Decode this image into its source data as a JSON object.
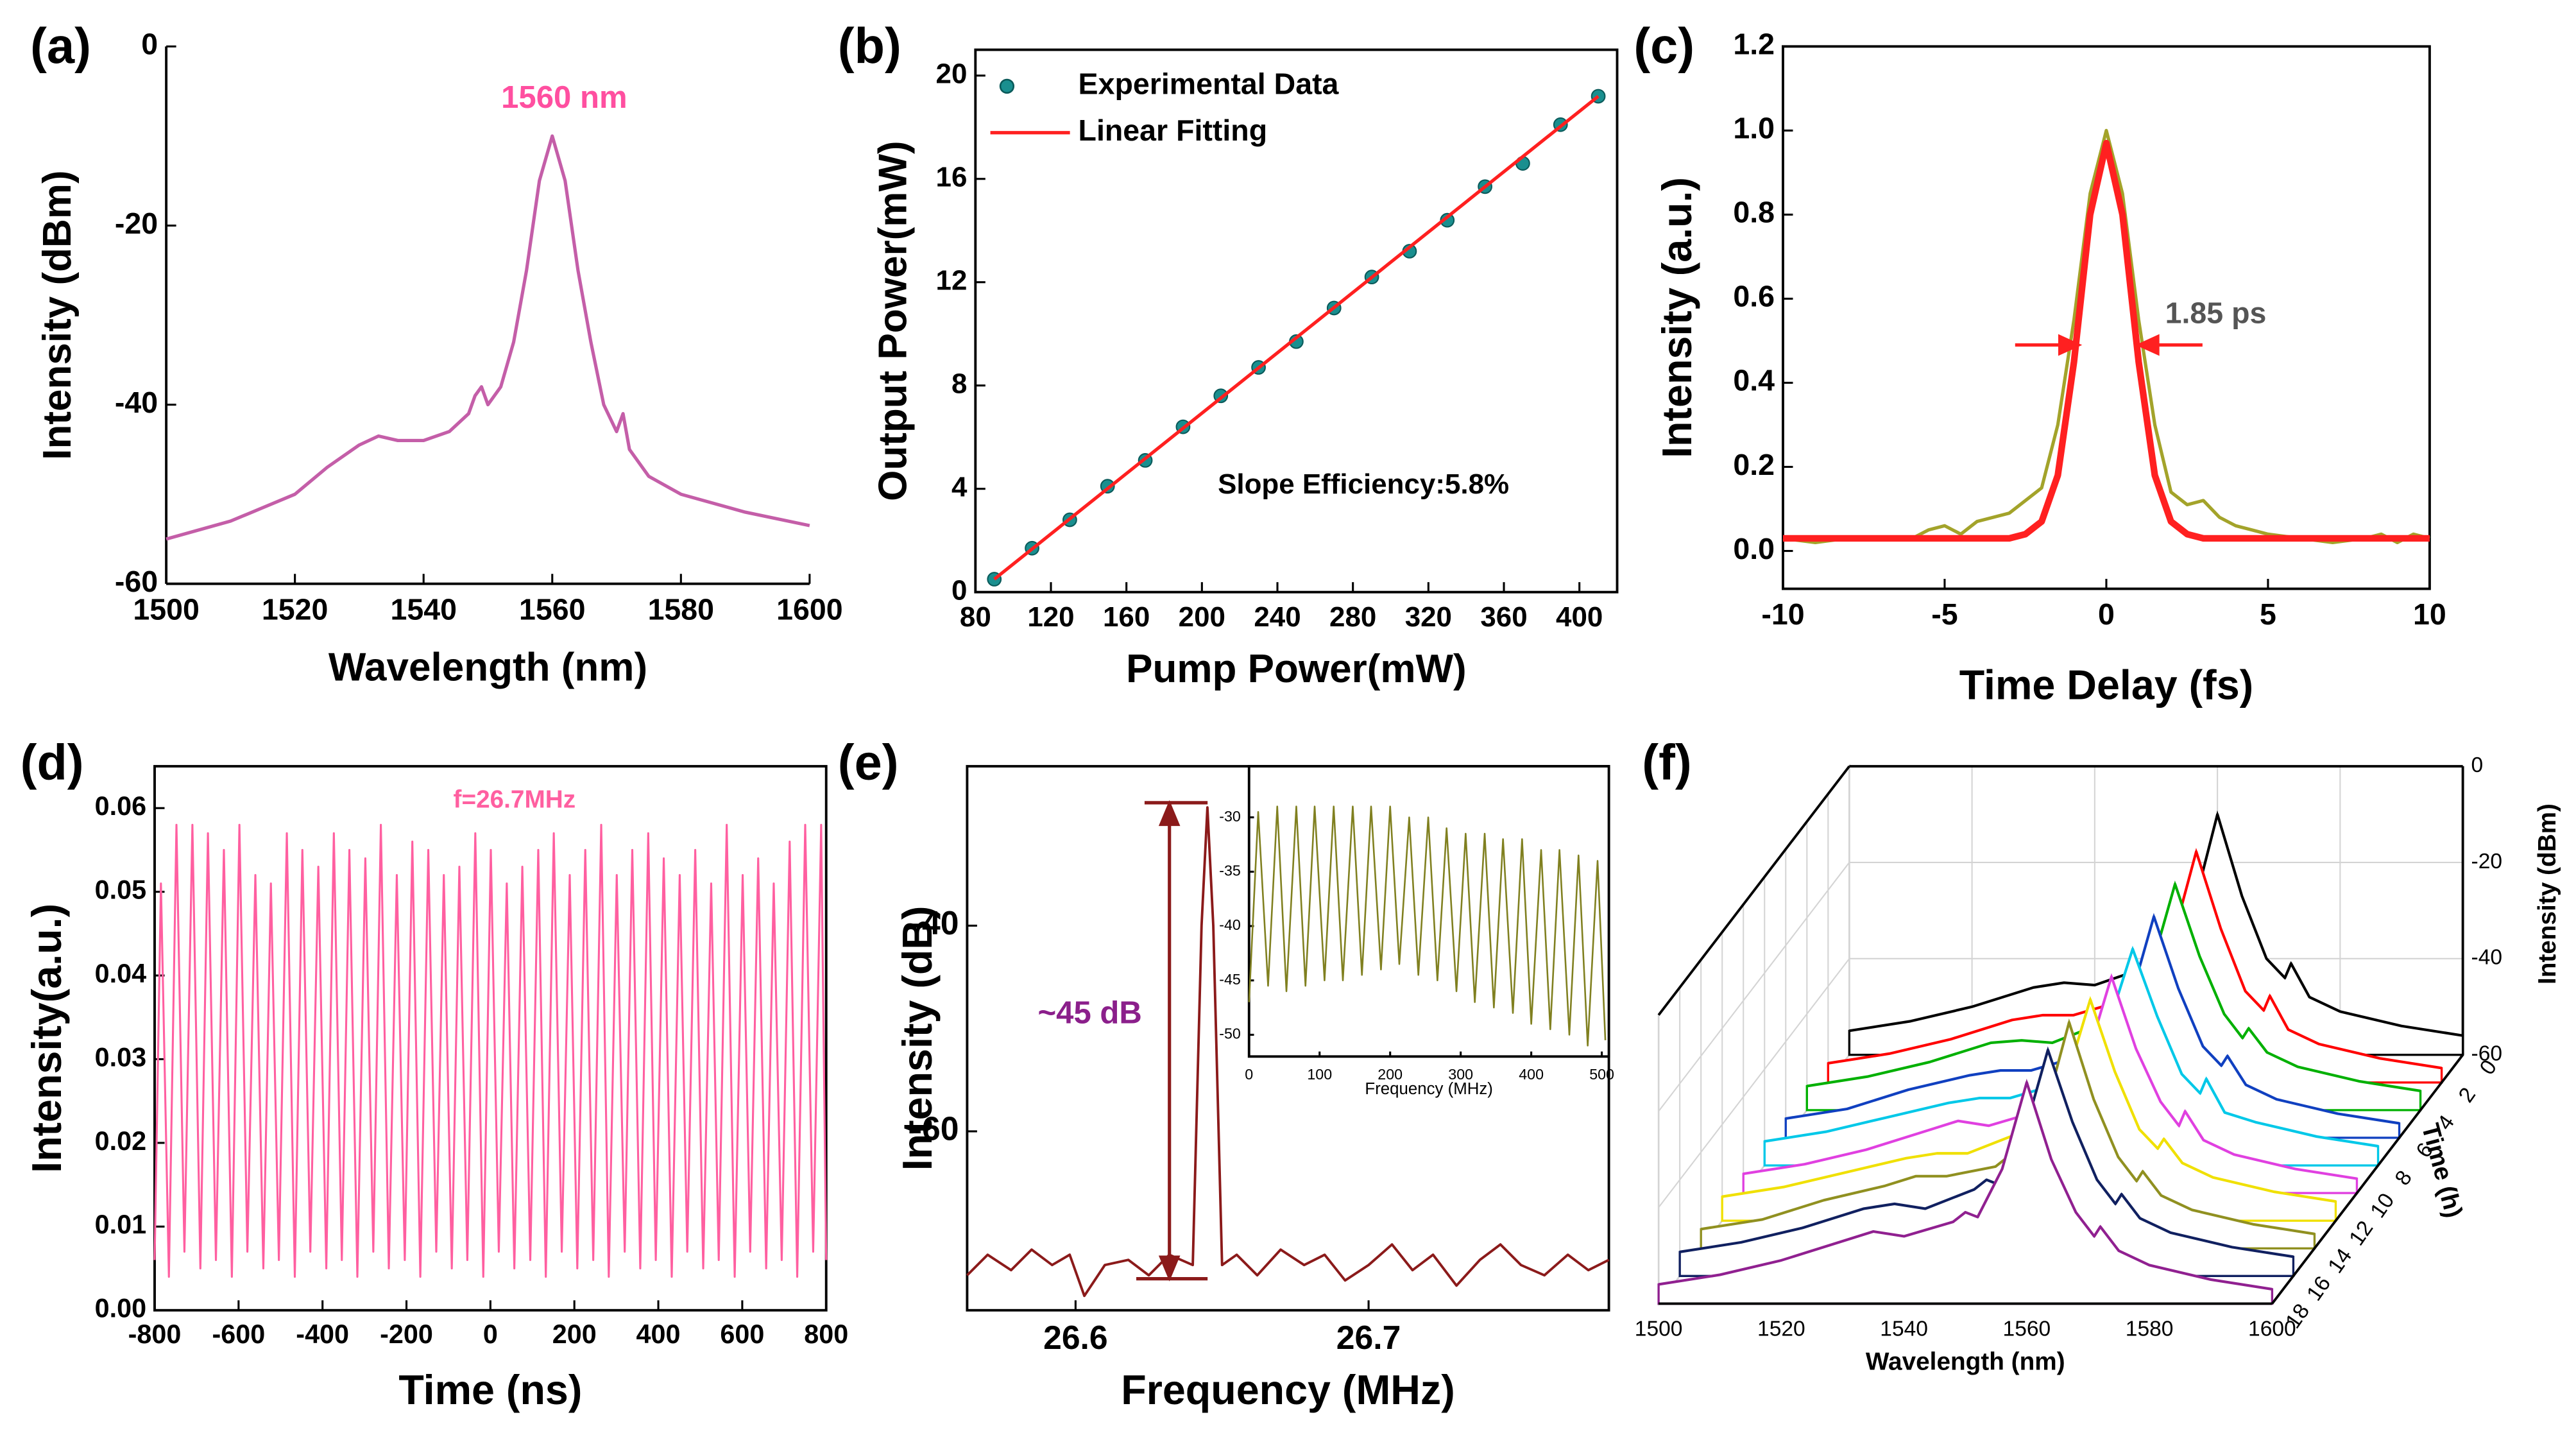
{
  "chart_data": [
    {
      "type": "line",
      "label": "(a)",
      "xlabel": "Wavelength (nm)",
      "ylabel": "Intensity (dBm)",
      "annotation": "1560 nm",
      "xlim": [
        1500,
        1600
      ],
      "ylim": [
        -60,
        0
      ],
      "xticks": [
        1500,
        1520,
        1540,
        1560,
        1580,
        1600
      ],
      "yticks": [
        0,
        -20,
        -40,
        -60
      ],
      "series": [
        {
          "color": "#c45ea8",
          "x": [
            1500,
            1505,
            1510,
            1515,
            1520,
            1525,
            1530,
            1533,
            1536,
            1540,
            1544,
            1547,
            1548,
            1549,
            1550,
            1552,
            1554,
            1556,
            1558,
            1560,
            1562,
            1564,
            1566,
            1568,
            1570,
            1571,
            1572,
            1575,
            1580,
            1590,
            1600
          ],
          "values": [
            -55,
            -54,
            -53,
            -51.5,
            -50,
            -47,
            -44.5,
            -43.5,
            -44,
            -44,
            -43,
            -41,
            -39,
            -38,
            -40,
            -38,
            -33,
            -25,
            -15,
            -10,
            -15,
            -25,
            -33,
            -40,
            -43,
            -41,
            -45,
            -48,
            -50,
            -52,
            -53.5
          ]
        }
      ]
    },
    {
      "type": "scatter",
      "label": "(b)",
      "xlabel": "Pump Power(mW)",
      "ylabel": "Output Power(mW)",
      "annotation": "Slope Efficiency:5.8%",
      "xlim": [
        80,
        420
      ],
      "ylim": [
        0,
        21
      ],
      "xticks": [
        80,
        120,
        160,
        200,
        240,
        280,
        320,
        360,
        400
      ],
      "yticks": [
        0,
        4,
        8,
        12,
        16,
        20
      ],
      "legend": "upper left",
      "series": [
        {
          "name": "Experimental Data",
          "color": "#1a8f8f",
          "x": [
            90,
            110,
            130,
            150,
            170,
            190,
            210,
            230,
            250,
            270,
            290,
            310,
            330,
            350,
            370,
            390,
            410
          ],
          "values": [
            0.5,
            1.7,
            2.8,
            4.1,
            5.1,
            6.4,
            7.6,
            8.7,
            9.7,
            11.0,
            12.2,
            13.2,
            14.4,
            15.7,
            16.6,
            18.1,
            19.2
          ]
        },
        {
          "name": "Linear Fitting",
          "type": "line",
          "color": "#ff2020",
          "x": [
            90,
            410
          ],
          "values": [
            0.5,
            19.2
          ]
        }
      ]
    },
    {
      "type": "line",
      "label": "(c)",
      "xlabel": "Time Delay (fs)",
      "ylabel": "Intensity (a.u.)",
      "annotation": "1.85 ps",
      "xlim": [
        -10,
        10
      ],
      "ylim": [
        -0.09,
        1.2
      ],
      "xticks": [
        -10,
        -5,
        0,
        5,
        10
      ],
      "yticks": [
        {
          "value": 0,
          "label": "0.0"
        },
        0.2,
        0.4,
        0.6,
        0.8,
        {
          "value": 1,
          "label": "1.0"
        },
        1.2
      ],
      "series": [
        {
          "color": "#a3a32a",
          "x": [
            -10,
            -9,
            -8,
            -7,
            -6,
            -5.5,
            -5,
            -4.5,
            -4,
            -3,
            -2.5,
            -2,
            -1.5,
            -1,
            -0.5,
            0,
            0.5,
            1,
            1.5,
            2,
            2.5,
            3,
            3.5,
            4,
            4.5,
            5,
            6,
            7,
            8,
            8.5,
            9,
            9.5,
            10
          ],
          "values": [
            0.03,
            0.02,
            0.03,
            0.03,
            0.03,
            0.05,
            0.06,
            0.04,
            0.07,
            0.09,
            0.12,
            0.15,
            0.3,
            0.55,
            0.85,
            1.0,
            0.85,
            0.55,
            0.3,
            0.14,
            0.11,
            0.12,
            0.08,
            0.06,
            0.05,
            0.04,
            0.03,
            0.02,
            0.03,
            0.04,
            0.02,
            0.04,
            0.03
          ]
        },
        {
          "color": "#ff2020",
          "x": [
            -10,
            -3,
            -2.5,
            -2,
            -1.5,
            -1,
            -0.5,
            0,
            0.5,
            1,
            1.5,
            2,
            2.5,
            3,
            10
          ],
          "values": [
            0.03,
            0.03,
            0.04,
            0.07,
            0.18,
            0.45,
            0.8,
            0.97,
            0.8,
            0.45,
            0.18,
            0.07,
            0.04,
            0.03,
            0.03
          ]
        }
      ]
    },
    {
      "type": "line",
      "label": "(d)",
      "xlabel": "Time (ns)",
      "ylabel": "Intensity(a.u.)",
      "annotation": "f=26.7MHz",
      "xlim": [
        -800,
        800
      ],
      "ylim": [
        0,
        0.065
      ],
      "xticks": [
        -800,
        -600,
        -400,
        -200,
        0,
        200,
        400,
        600,
        800
      ],
      "yticks": [
        {
          "value": 0,
          "label": "0.00"
        },
        0.01,
        0.02,
        0.03,
        0.04,
        0.05,
        0.06
      ],
      "series": [
        {
          "color": "#ff5fa0",
          "x": [
            -800,
            -785,
            -766,
            -748,
            -729,
            -710,
            -691,
            -673,
            -654,
            -635,
            -616,
            -598,
            -579,
            -560,
            -541,
            -523,
            -504,
            -485,
            -466,
            -448,
            -429,
            -410,
            -391,
            -373,
            -354,
            -336,
            -317,
            -298,
            -279,
            -261,
            -242,
            -223,
            -204,
            -186,
            -167,
            -148,
            -129,
            -111,
            -92,
            -74,
            -55,
            -36,
            -17,
            1,
            20,
            39,
            57,
            76,
            95,
            114,
            132,
            151,
            170,
            189,
            207,
            226,
            245,
            264,
            282,
            301,
            320,
            338,
            357,
            376,
            394,
            413,
            432,
            451,
            469,
            488,
            507,
            526,
            544,
            563,
            582,
            601,
            619,
            638,
            657,
            675,
            694,
            713,
            731,
            750,
            769,
            788,
            800
          ],
          "values": [
            0.006,
            0.051,
            0.004,
            0.058,
            0.007,
            0.058,
            0.005,
            0.057,
            0.006,
            0.055,
            0.004,
            0.058,
            0.007,
            0.052,
            0.005,
            0.051,
            0.006,
            0.057,
            0.004,
            0.055,
            0.007,
            0.053,
            0.005,
            0.057,
            0.006,
            0.055,
            0.004,
            0.054,
            0.007,
            0.058,
            0.005,
            0.052,
            0.006,
            0.056,
            0.004,
            0.055,
            0.007,
            0.052,
            0.005,
            0.053,
            0.006,
            0.057,
            0.004,
            0.055,
            0.007,
            0.051,
            0.005,
            0.053,
            0.006,
            0.055,
            0.004,
            0.057,
            0.007,
            0.052,
            0.005,
            0.055,
            0.006,
            0.058,
            0.004,
            0.052,
            0.007,
            0.055,
            0.005,
            0.057,
            0.006,
            0.054,
            0.004,
            0.052,
            0.007,
            0.055,
            0.005,
            0.051,
            0.006,
            0.058,
            0.004,
            0.052,
            0.007,
            0.054,
            0.005,
            0.051,
            0.006,
            0.056,
            0.004,
            0.058,
            0.007,
            0.058,
            0.006
          ]
        }
      ]
    },
    {
      "type": "line",
      "label": "(e)",
      "xlabel": "Frequency (MHz)",
      "ylabel": "Intensity (dB)",
      "annotation": "~45 dB",
      "xlim": [
        26.563,
        26.782
      ],
      "ylim": [
        -77.4,
        -24.5
      ],
      "xticks": [
        26.6,
        26.7
      ],
      "yticks": [
        -40,
        -60
      ],
      "series": [
        {
          "color": "#8b1a1a",
          "x": [
            26.563,
            26.57,
            26.578,
            26.585,
            26.592,
            26.598,
            26.603,
            26.61,
            26.618,
            26.625,
            26.632,
            26.64,
            26.643,
            26.645,
            26.647,
            26.65,
            26.655,
            26.662,
            26.67,
            26.678,
            26.685,
            26.692,
            26.7,
            26.708,
            26.715,
            26.722,
            26.73,
            26.738,
            26.745,
            26.752,
            26.76,
            26.768,
            26.775,
            26.782
          ],
          "values": [
            -74,
            -72,
            -73.5,
            -71.5,
            -73,
            -72,
            -76,
            -73,
            -72.5,
            -74,
            -72,
            -73,
            -40,
            -28.5,
            -40,
            -73,
            -72,
            -74,
            -71.5,
            -73,
            -72,
            -74.5,
            -73,
            -71,
            -73.5,
            -72,
            -75,
            -72.5,
            -71,
            -73,
            -74,
            -72,
            -73.5,
            -72.5
          ]
        }
      ],
      "inset": {
        "type": "line",
        "xlabel": "Frequency (MHz)",
        "xlim": [
          0,
          510
        ],
        "ylim": [
          -52,
          -25.3
        ],
        "xticks": [
          0,
          100,
          200,
          300,
          400,
          500
        ],
        "yticks": [
          -30,
          -35,
          -40,
          -45,
          -50
        ],
        "series": [
          {
            "color": "#808020",
            "x": [
              0,
              13,
              27,
              40,
              53,
              67,
              80,
              93,
              107,
              120,
              133,
              147,
              160,
              173,
              187,
              200,
              213,
              227,
              240,
              254,
              267,
              280,
              294,
              307,
              320,
              334,
              347,
              360,
              374,
              387,
              400,
              414,
              427,
              440,
              454,
              467,
              480,
              494,
              505
            ],
            "values": [
              -47,
              -29.5,
              -45.5,
              -29,
              -46,
              -29,
              -45.5,
              -29,
              -45,
              -29,
              -45,
              -29,
              -44.5,
              -29,
              -44,
              -29,
              -43.5,
              -30,
              -44.5,
              -30,
              -45,
              -31,
              -46,
              -31.5,
              -47,
              -31.5,
              -47.5,
              -32,
              -48,
              -32,
              -49,
              -33,
              -49.5,
              -33,
              -50,
              -33.5,
              -51,
              -34,
              -50.5
            ]
          }
        ]
      }
    },
    {
      "type": "waterfall",
      "label": "(f)",
      "xlabel": "Wavelength (nm)",
      "ylabel": "Time (h)",
      "zlabel": "Intensity (dBm)",
      "xlim": [
        1500,
        1600
      ],
      "ylim": [
        0,
        18
      ],
      "zlim": [
        -60,
        0
      ],
      "xticks": [
        1500,
        1520,
        1540,
        1560,
        1580,
        1600
      ],
      "yticks": [
        0,
        2,
        4,
        6,
        8,
        10,
        12,
        14,
        16,
        18
      ],
      "zticks": [
        0,
        -20,
        -40,
        -60
      ],
      "x": [
        1500,
        1510,
        1520,
        1530,
        1535,
        1540,
        1548,
        1550,
        1552,
        1556,
        1560,
        1564,
        1568,
        1571,
        1572,
        1575,
        1580,
        1590,
        1600
      ],
      "series": [
        {
          "time": 0,
          "color": "#000000",
          "values": [
            -55,
            -53,
            -50,
            -46,
            -45,
            -45.5,
            -42,
            -40,
            -41,
            -30,
            -10,
            -27,
            -40,
            -44,
            -41,
            -48,
            -51,
            -54,
            -56
          ]
        },
        {
          "time": 2,
          "color": "#ff0000",
          "values": [
            -56,
            -54,
            -51,
            -47,
            -46,
            -46,
            -43,
            -41,
            -42,
            -31,
            -12,
            -28,
            -41,
            -45,
            -42,
            -49,
            -52,
            -55,
            -57
          ]
        },
        {
          "time": 4,
          "color": "#00b000",
          "values": [
            -55,
            -53,
            -50,
            -46,
            -45.5,
            -46,
            -42,
            -41,
            -41,
            -31,
            -13,
            -28,
            -40,
            -45,
            -43,
            -48,
            -51,
            -54,
            -56
          ]
        },
        {
          "time": 6,
          "color": "#1040c0",
          "values": [
            -56,
            -54,
            -50,
            -47,
            -46,
            -46,
            -43,
            -41,
            -42,
            -32,
            -14,
            -29,
            -41,
            -45,
            -43,
            -49,
            -52,
            -55,
            -57
          ]
        },
        {
          "time": 8,
          "color": "#00c8e8",
          "values": [
            -55,
            -53,
            -50,
            -47,
            -46,
            -46,
            -43,
            -42,
            -41,
            -31,
            -15,
            -29,
            -41,
            -45,
            -42,
            -49,
            -51,
            -54,
            -56
          ]
        },
        {
          "time": 10,
          "color": "#e040e0",
          "values": [
            -56,
            -54,
            -51,
            -47,
            -45,
            -46,
            -43,
            -41,
            -42,
            -32,
            -15,
            -30,
            -41,
            -46,
            -43,
            -49,
            -52,
            -55,
            -57
          ]
        },
        {
          "time": 12,
          "color": "#f0e000",
          "values": [
            -55,
            -53,
            -50,
            -47,
            -46,
            -46,
            -42,
            -41,
            -42,
            -31,
            -14,
            -29,
            -41,
            -45,
            -43,
            -48,
            -51,
            -54,
            -56
          ]
        },
        {
          "time": 14,
          "color": "#909020",
          "values": [
            -56,
            -54,
            -50,
            -47,
            -45,
            -45,
            -43,
            -41,
            -42,
            -32,
            -13,
            -29,
            -41,
            -46,
            -44,
            -49,
            -52,
            -55,
            -57
          ]
        },
        {
          "time": 16,
          "color": "#102060",
          "values": [
            -55,
            -53,
            -50,
            -46,
            -45,
            -46,
            -42,
            -40,
            -41,
            -31,
            -13,
            -28,
            -40,
            -45,
            -43,
            -48,
            -51,
            -54,
            -56
          ]
        },
        {
          "time": 18,
          "color": "#902090",
          "values": [
            -56,
            -54,
            -51,
            -47,
            -45,
            -46,
            -43,
            -41,
            -42,
            -32,
            -14,
            -30,
            -41,
            -46,
            -44,
            -49,
            -52,
            -55,
            -57
          ]
        }
      ]
    }
  ]
}
